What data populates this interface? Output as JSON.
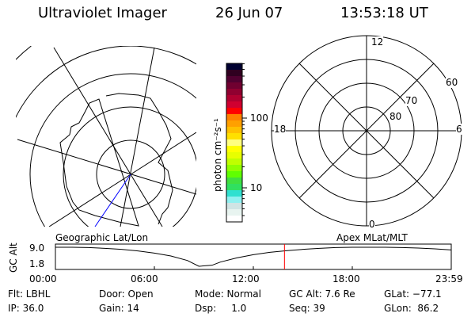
{
  "header": {
    "instrument": "Ultraviolet Imager",
    "date": "26 Jun 07",
    "time": "13:53:18 UT"
  },
  "colorbar": {
    "unit_label": "photon cm⁻²s⁻¹",
    "tick_labels": [
      "100",
      "10"
    ],
    "scale": "log",
    "colors": [
      "#000030",
      "#300020",
      "#500030",
      "#700030",
      "#900030",
      "#b00030",
      "#d00030",
      "#ff0000",
      "#ff8000",
      "#ffa000",
      "#ffc000",
      "#ffe000",
      "#ffff80",
      "#ffff00",
      "#e8ff00",
      "#c0ff00",
      "#90ff00",
      "#60ff00",
      "#40e040",
      "#30e060",
      "#30e0d0",
      "#90f0f0",
      "#d0e4e4",
      "#e8f4f0",
      "#ffffff"
    ]
  },
  "left_map": {
    "label": "Geographic Lat/Lon"
  },
  "right_map": {
    "label": "Apex MLat/MLT",
    "mlt_labels": {
      "top": "12",
      "bottom": "0",
      "left": "18",
      "right": "6"
    },
    "lat_labels": [
      "60",
      "70",
      "80"
    ]
  },
  "chart_data": {
    "type": "line",
    "ylabel": "GC Alt",
    "y_tick_labels": [
      "9.0",
      "1.8"
    ],
    "ylim": [
      1.8,
      9.0
    ],
    "x_tick_labels": [
      "00:00",
      "06:00",
      "12:00",
      "18:00",
      "23:59"
    ],
    "xlim_hours": [
      0,
      24
    ],
    "series": [
      {
        "x": [
          0,
          1,
          2,
          3,
          4,
          5,
          6,
          7,
          8,
          8.7,
          9.5,
          10,
          11,
          12,
          13,
          14,
          15,
          16,
          17,
          18,
          19,
          20,
          21,
          22,
          23,
          24
        ],
        "y": [
          9.0,
          9.0,
          8.9,
          8.6,
          8.2,
          7.6,
          6.8,
          5.7,
          4.0,
          1.8,
          2.2,
          3.4,
          5.0,
          6.2,
          7.1,
          7.7,
          8.2,
          8.6,
          8.9,
          9.0,
          9.0,
          9.0,
          8.9,
          8.7,
          8.4,
          8.0
        ]
      }
    ],
    "current_time_marker_hours": 13.888,
    "marker_color": "#ff0000"
  },
  "status": {
    "filter": "Flt: LBHL",
    "ip": "IP: 36.0",
    "door": "Door: Open",
    "gain": "Gain: 14",
    "mode": "Mode: Normal",
    "dsp": "Dsp:     1.0",
    "gc_alt": "GC Alt: 7.6 Re",
    "seq": "Seq: 39",
    "glat": "GLat: −77.1",
    "glon": "GLon:  86.2"
  }
}
